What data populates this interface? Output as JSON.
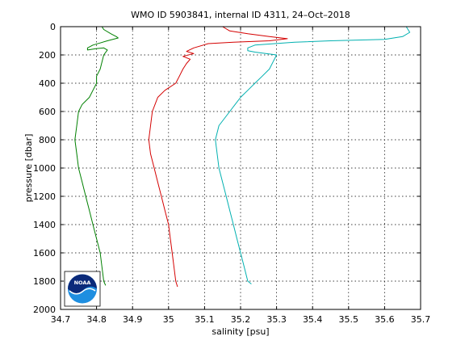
{
  "chart_data": {
    "type": "line",
    "title": "WMO ID 5903841, internal ID 4311, 24–Oct–2018",
    "xlabel": "salinity [psu]",
    "ylabel": "pressure [dbar]",
    "xlim": [
      34.7,
      35.7
    ],
    "ylim": [
      0,
      2000
    ],
    "y_reversed": true,
    "grid": true,
    "xticks": [
      "34.7",
      "34.8",
      "34.9",
      "35",
      "35.1",
      "35.2",
      "35.3",
      "35.4",
      "35.5",
      "35.6",
      "35.7"
    ],
    "yticks": [
      "0",
      "200",
      "400",
      "600",
      "800",
      "1000",
      "1200",
      "1400",
      "1600",
      "1800",
      "2000"
    ],
    "logo": {
      "text": "NOAA",
      "colors": {
        "top": "#0b2a7a",
        "bottom": "#1e8ee0"
      }
    },
    "series": [
      {
        "color": "#008000",
        "points": [
          [
            34.815,
            0
          ],
          [
            34.82,
            20
          ],
          [
            34.84,
            50
          ],
          [
            34.855,
            70
          ],
          [
            34.86,
            80
          ],
          [
            34.83,
            100
          ],
          [
            34.79,
            130
          ],
          [
            34.775,
            150
          ],
          [
            34.775,
            165
          ],
          [
            34.8,
            155
          ],
          [
            34.82,
            150
          ],
          [
            34.83,
            165
          ],
          [
            34.82,
            200
          ],
          [
            34.815,
            250
          ],
          [
            34.81,
            300
          ],
          [
            34.8,
            350
          ],
          [
            34.8,
            400
          ],
          [
            34.79,
            450
          ],
          [
            34.78,
            500
          ],
          [
            34.76,
            550
          ],
          [
            34.75,
            600
          ],
          [
            34.745,
            700
          ],
          [
            34.74,
            800
          ],
          [
            34.745,
            900
          ],
          [
            34.75,
            1000
          ],
          [
            34.76,
            1100
          ],
          [
            34.77,
            1200
          ],
          [
            34.78,
            1300
          ],
          [
            34.79,
            1400
          ],
          [
            34.8,
            1500
          ],
          [
            34.81,
            1600
          ],
          [
            34.815,
            1700
          ],
          [
            34.82,
            1800
          ],
          [
            34.825,
            1830
          ]
        ]
      },
      {
        "color": "#d40000",
        "points": [
          [
            35.15,
            0
          ],
          [
            35.17,
            30
          ],
          [
            35.22,
            50
          ],
          [
            35.28,
            70
          ],
          [
            35.33,
            85
          ],
          [
            35.28,
            100
          ],
          [
            35.18,
            110
          ],
          [
            35.11,
            120
          ],
          [
            35.07,
            150
          ],
          [
            35.05,
            175
          ],
          [
            35.07,
            190
          ],
          [
            35.04,
            210
          ],
          [
            35.06,
            230
          ],
          [
            35.05,
            260
          ],
          [
            35.04,
            300
          ],
          [
            35.03,
            350
          ],
          [
            35.02,
            400
          ],
          [
            34.99,
            450
          ],
          [
            34.97,
            500
          ],
          [
            34.955,
            600
          ],
          [
            34.95,
            700
          ],
          [
            34.945,
            800
          ],
          [
            34.95,
            900
          ],
          [
            34.96,
            1000
          ],
          [
            34.97,
            1100
          ],
          [
            34.98,
            1200
          ],
          [
            34.99,
            1300
          ],
          [
            35.0,
            1400
          ],
          [
            35.005,
            1500
          ],
          [
            35.01,
            1600
          ],
          [
            35.015,
            1700
          ],
          [
            35.02,
            1800
          ],
          [
            35.025,
            1840
          ]
        ]
      },
      {
        "color": "#00b0b0",
        "points": [
          [
            35.66,
            0
          ],
          [
            35.665,
            20
          ],
          [
            35.67,
            40
          ],
          [
            35.65,
            70
          ],
          [
            35.6,
            90
          ],
          [
            35.45,
            100
          ],
          [
            35.35,
            110
          ],
          [
            35.24,
            130
          ],
          [
            35.22,
            150
          ],
          [
            35.22,
            170
          ],
          [
            35.24,
            180
          ],
          [
            35.27,
            190
          ],
          [
            35.3,
            200
          ],
          [
            35.29,
            250
          ],
          [
            35.28,
            300
          ],
          [
            35.26,
            350
          ],
          [
            35.24,
            400
          ],
          [
            35.22,
            450
          ],
          [
            35.2,
            500
          ],
          [
            35.17,
            600
          ],
          [
            35.14,
            700
          ],
          [
            35.13,
            800
          ],
          [
            35.135,
            900
          ],
          [
            35.14,
            1000
          ],
          [
            35.15,
            1100
          ],
          [
            35.16,
            1200
          ],
          [
            35.17,
            1300
          ],
          [
            35.18,
            1400
          ],
          [
            35.19,
            1500
          ],
          [
            35.2,
            1600
          ],
          [
            35.21,
            1700
          ],
          [
            35.22,
            1800
          ],
          [
            35.23,
            1820
          ]
        ]
      }
    ]
  }
}
